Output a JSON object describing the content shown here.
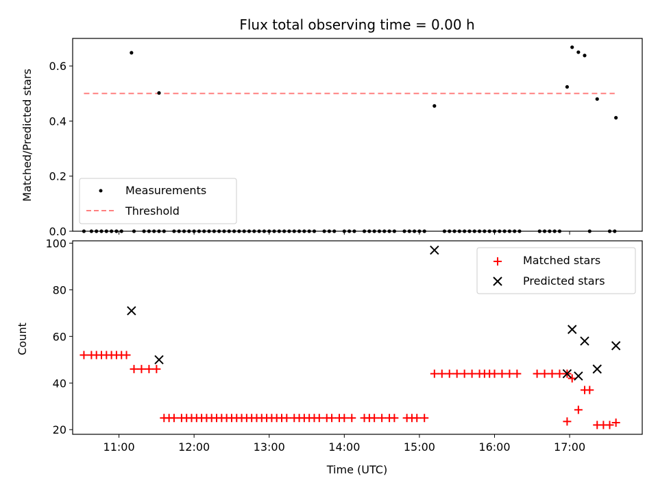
{
  "chart_data": [
    {
      "type": "scatter",
      "title": "Flux total observing time = 0.00 h",
      "xlabel": "",
      "ylabel": "Matched/Predicted stars",
      "xlim": [
        "10:23",
        "17:58"
      ],
      "ylim": [
        0,
        0.7
      ],
      "yticks": [
        0.0,
        0.2,
        0.4,
        0.6
      ],
      "ytick_labels": [
        "0.0",
        "0.2",
        "0.4",
        "0.6"
      ],
      "grid": false,
      "legend_position": "lower-left",
      "series": [
        {
          "name": "Measurements",
          "kind": "scatter",
          "color": "#000000",
          "x": [
            "10:32",
            "10:38",
            "10:42",
            "10:46",
            "10:50",
            "10:54",
            "10:58",
            "11:02",
            "11:12",
            "11:20",
            "11:24",
            "11:28",
            "11:32",
            "11:36",
            "11:44",
            "11:48",
            "11:52",
            "11:56",
            "12:00",
            "12:04",
            "12:08",
            "12:12",
            "12:16",
            "12:20",
            "12:24",
            "12:28",
            "12:32",
            "12:36",
            "12:40",
            "12:44",
            "12:48",
            "12:52",
            "12:56",
            "13:00",
            "13:04",
            "13:08",
            "13:12",
            "13:16",
            "13:20",
            "13:24",
            "13:28",
            "13:32",
            "13:36",
            "13:44",
            "13:48",
            "13:52",
            "14:00",
            "14:04",
            "14:08",
            "14:16",
            "14:20",
            "14:24",
            "14:28",
            "14:32",
            "14:36",
            "14:40",
            "14:48",
            "14:52",
            "14:56",
            "15:00",
            "15:04",
            "15:20",
            "15:24",
            "15:28",
            "15:32",
            "15:36",
            "15:40",
            "15:44",
            "15:48",
            "15:52",
            "15:56",
            "16:00",
            "16:04",
            "16:08",
            "16:12",
            "16:16",
            "16:20",
            "16:36",
            "16:40",
            "16:44",
            "16:48",
            "16:52",
            "17:16",
            "17:32",
            "17:36",
            "11:10",
            "11:32",
            "15:12",
            "16:58",
            "17:02",
            "17:07",
            "17:12",
            "17:22",
            "17:37"
          ],
          "y": [
            0,
            0,
            0,
            0,
            0,
            0,
            0,
            0,
            0,
            0,
            0,
            0,
            0,
            0,
            0,
            0,
            0,
            0,
            0,
            0,
            0,
            0,
            0,
            0,
            0,
            0,
            0,
            0,
            0,
            0,
            0,
            0,
            0,
            0,
            0,
            0,
            0,
            0,
            0,
            0,
            0,
            0,
            0,
            0,
            0,
            0,
            0,
            0,
            0,
            0,
            0,
            0,
            0,
            0,
            0,
            0,
            0,
            0,
            0,
            0,
            0,
            0,
            0,
            0,
            0,
            0,
            0,
            0,
            0,
            0,
            0,
            0,
            0,
            0,
            0,
            0,
            0,
            0,
            0,
            0,
            0,
            0,
            0,
            0,
            0,
            0.648,
            0.502,
            0.455,
            0.524,
            0.668,
            0.65,
            0.638,
            0.48,
            0.412
          ]
        },
        {
          "name": "Threshold",
          "kind": "line",
          "style": "dashed",
          "color": "#ff7f7f",
          "x": [
            "10:32",
            "17:36"
          ],
          "y": [
            0.5,
            0.5
          ]
        }
      ]
    },
    {
      "type": "scatter",
      "title": "",
      "xlabel": "Time (UTC)",
      "ylabel": "Count",
      "xlim": [
        "10:23",
        "17:58"
      ],
      "ylim": [
        18,
        101
      ],
      "yticks": [
        20,
        40,
        60,
        80,
        100
      ],
      "ytick_labels": [
        "20",
        "40",
        "60",
        "80",
        "100"
      ],
      "xticks": [
        "11:00",
        "12:00",
        "13:00",
        "14:00",
        "15:00",
        "16:00",
        "17:00"
      ],
      "xtick_labels": [
        "11:00",
        "12:00",
        "13:00",
        "14:00",
        "15:00",
        "16:00",
        "17:00"
      ],
      "grid": false,
      "legend_position": "top-right",
      "series": [
        {
          "name": "Matched stars",
          "marker": "plus",
          "color": "#ff0000",
          "x": [
            "10:32",
            "10:38",
            "10:42",
            "10:46",
            "10:50",
            "10:54",
            "10:58",
            "11:02",
            "11:06",
            "11:12",
            "11:18",
            "11:24",
            "11:30",
            "11:36",
            "11:40",
            "11:44",
            "11:50",
            "11:54",
            "11:58",
            "12:02",
            "12:06",
            "12:10",
            "12:14",
            "12:18",
            "12:22",
            "12:26",
            "12:30",
            "12:34",
            "12:38",
            "12:42",
            "12:46",
            "12:50",
            "12:54",
            "12:58",
            "13:02",
            "13:06",
            "13:10",
            "13:14",
            "13:20",
            "13:24",
            "13:28",
            "13:32",
            "13:36",
            "13:40",
            "13:46",
            "13:50",
            "13:56",
            "14:00",
            "14:06",
            "14:16",
            "14:20",
            "14:24",
            "14:30",
            "14:36",
            "14:40",
            "14:50",
            "14:54",
            "14:58",
            "15:04",
            "15:12",
            "15:18",
            "15:24",
            "15:30",
            "15:36",
            "15:42",
            "15:48",
            "15:52",
            "15:56",
            "16:00",
            "16:06",
            "16:12",
            "16:18",
            "16:34",
            "16:40",
            "16:46",
            "16:52",
            "16:58",
            "16:58",
            "17:02",
            "17:07",
            "17:12",
            "17:16",
            "17:22",
            "17:27",
            "17:32",
            "17:37"
          ],
          "y": [
            52,
            52,
            52,
            52,
            52,
            52,
            52,
            52,
            52,
            46,
            46,
            46,
            46,
            25,
            25,
            25,
            25,
            25,
            25,
            25,
            25,
            25,
            25,
            25,
            25,
            25,
            25,
            25,
            25,
            25,
            25,
            25,
            25,
            25,
            25,
            25,
            25,
            25,
            25,
            25,
            25,
            25,
            25,
            25,
            25,
            25,
            25,
            25,
            25,
            25,
            25,
            25,
            25,
            25,
            25,
            25,
            25,
            25,
            25,
            44,
            44,
            44,
            44,
            44,
            44,
            44,
            44,
            44,
            44,
            44,
            44,
            44,
            44,
            44,
            44,
            44,
            44,
            23.5,
            42,
            28.5,
            37,
            37,
            22,
            22,
            22,
            23
          ]
        },
        {
          "name": "Predicted stars",
          "marker": "x",
          "color": "#000000",
          "x": [
            "11:10",
            "11:32",
            "15:12",
            "16:58",
            "17:02",
            "17:07",
            "17:12",
            "17:22",
            "17:37"
          ],
          "y": [
            71,
            50,
            97,
            44,
            63,
            43,
            58,
            46,
            56
          ]
        }
      ]
    }
  ]
}
